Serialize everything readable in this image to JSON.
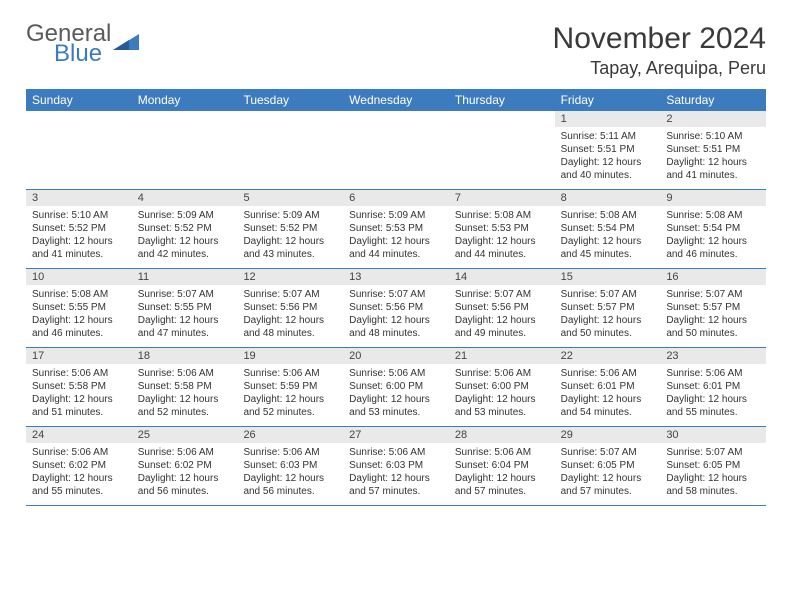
{
  "brand": {
    "line1": "General",
    "line2": "Blue"
  },
  "colors": {
    "brand_blue": "#3d7bbf",
    "header_bg": "#3d7bbf",
    "header_text": "#ffffff",
    "daynum_bg": "#e9e9e9",
    "rule": "#3d7bbf",
    "text": "#333333",
    "title": "#3a3a3a"
  },
  "title": "November 2024",
  "location": "Tapay, Arequipa, Peru",
  "dow": [
    "Sunday",
    "Monday",
    "Tuesday",
    "Wednesday",
    "Thursday",
    "Friday",
    "Saturday"
  ],
  "labels": {
    "sunrise": "Sunrise:",
    "sunset": "Sunset:",
    "daylight": "Daylight:"
  },
  "weeks": [
    [
      {
        "n": "",
        "empty": true
      },
      {
        "n": "",
        "empty": true
      },
      {
        "n": "",
        "empty": true
      },
      {
        "n": "",
        "empty": true
      },
      {
        "n": "",
        "empty": true
      },
      {
        "n": "1",
        "sr": "5:11 AM",
        "ss": "5:51 PM",
        "dl": "12 hours and 40 minutes."
      },
      {
        "n": "2",
        "sr": "5:10 AM",
        "ss": "5:51 PM",
        "dl": "12 hours and 41 minutes."
      }
    ],
    [
      {
        "n": "3",
        "sr": "5:10 AM",
        "ss": "5:52 PM",
        "dl": "12 hours and 41 minutes."
      },
      {
        "n": "4",
        "sr": "5:09 AM",
        "ss": "5:52 PM",
        "dl": "12 hours and 42 minutes."
      },
      {
        "n": "5",
        "sr": "5:09 AM",
        "ss": "5:52 PM",
        "dl": "12 hours and 43 minutes."
      },
      {
        "n": "6",
        "sr": "5:09 AM",
        "ss": "5:53 PM",
        "dl": "12 hours and 44 minutes."
      },
      {
        "n": "7",
        "sr": "5:08 AM",
        "ss": "5:53 PM",
        "dl": "12 hours and 44 minutes."
      },
      {
        "n": "8",
        "sr": "5:08 AM",
        "ss": "5:54 PM",
        "dl": "12 hours and 45 minutes."
      },
      {
        "n": "9",
        "sr": "5:08 AM",
        "ss": "5:54 PM",
        "dl": "12 hours and 46 minutes."
      }
    ],
    [
      {
        "n": "10",
        "sr": "5:08 AM",
        "ss": "5:55 PM",
        "dl": "12 hours and 46 minutes."
      },
      {
        "n": "11",
        "sr": "5:07 AM",
        "ss": "5:55 PM",
        "dl": "12 hours and 47 minutes."
      },
      {
        "n": "12",
        "sr": "5:07 AM",
        "ss": "5:56 PM",
        "dl": "12 hours and 48 minutes."
      },
      {
        "n": "13",
        "sr": "5:07 AM",
        "ss": "5:56 PM",
        "dl": "12 hours and 48 minutes."
      },
      {
        "n": "14",
        "sr": "5:07 AM",
        "ss": "5:56 PM",
        "dl": "12 hours and 49 minutes."
      },
      {
        "n": "15",
        "sr": "5:07 AM",
        "ss": "5:57 PM",
        "dl": "12 hours and 50 minutes."
      },
      {
        "n": "16",
        "sr": "5:07 AM",
        "ss": "5:57 PM",
        "dl": "12 hours and 50 minutes."
      }
    ],
    [
      {
        "n": "17",
        "sr": "5:06 AM",
        "ss": "5:58 PM",
        "dl": "12 hours and 51 minutes."
      },
      {
        "n": "18",
        "sr": "5:06 AM",
        "ss": "5:58 PM",
        "dl": "12 hours and 52 minutes."
      },
      {
        "n": "19",
        "sr": "5:06 AM",
        "ss": "5:59 PM",
        "dl": "12 hours and 52 minutes."
      },
      {
        "n": "20",
        "sr": "5:06 AM",
        "ss": "6:00 PM",
        "dl": "12 hours and 53 minutes."
      },
      {
        "n": "21",
        "sr": "5:06 AM",
        "ss": "6:00 PM",
        "dl": "12 hours and 53 minutes."
      },
      {
        "n": "22",
        "sr": "5:06 AM",
        "ss": "6:01 PM",
        "dl": "12 hours and 54 minutes."
      },
      {
        "n": "23",
        "sr": "5:06 AM",
        "ss": "6:01 PM",
        "dl": "12 hours and 55 minutes."
      }
    ],
    [
      {
        "n": "24",
        "sr": "5:06 AM",
        "ss": "6:02 PM",
        "dl": "12 hours and 55 minutes."
      },
      {
        "n": "25",
        "sr": "5:06 AM",
        "ss": "6:02 PM",
        "dl": "12 hours and 56 minutes."
      },
      {
        "n": "26",
        "sr": "5:06 AM",
        "ss": "6:03 PM",
        "dl": "12 hours and 56 minutes."
      },
      {
        "n": "27",
        "sr": "5:06 AM",
        "ss": "6:03 PM",
        "dl": "12 hours and 57 minutes."
      },
      {
        "n": "28",
        "sr": "5:06 AM",
        "ss": "6:04 PM",
        "dl": "12 hours and 57 minutes."
      },
      {
        "n": "29",
        "sr": "5:07 AM",
        "ss": "6:05 PM",
        "dl": "12 hours and 57 minutes."
      },
      {
        "n": "30",
        "sr": "5:07 AM",
        "ss": "6:05 PM",
        "dl": "12 hours and 58 minutes."
      }
    ]
  ]
}
